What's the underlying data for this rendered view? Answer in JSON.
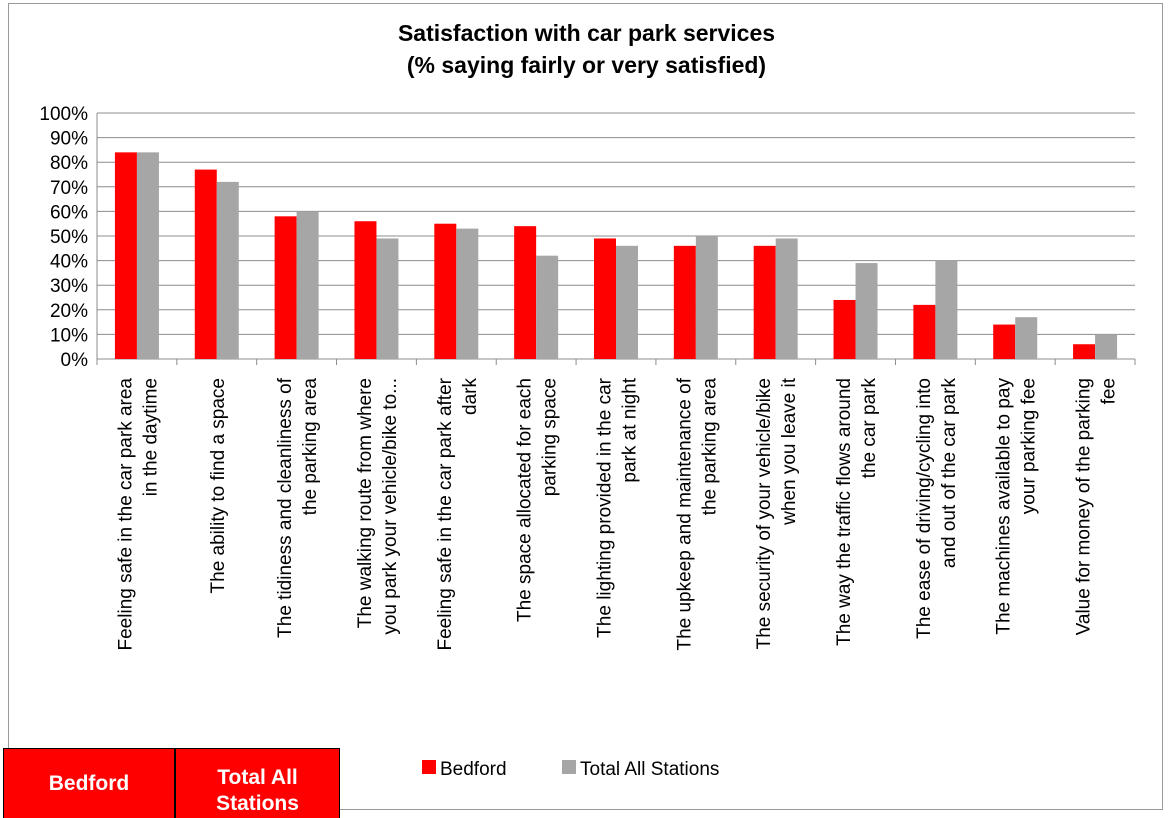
{
  "chart_data": {
    "type": "bar",
    "title": [
      "Satisfaction with car park services",
      "(% saying fairly or very satisfied)"
    ],
    "xlabel": "",
    "ylabel": "",
    "ylim": [
      0,
      100
    ],
    "yticks": [
      "0%",
      "10%",
      "20%",
      "30%",
      "40%",
      "50%",
      "60%",
      "70%",
      "80%",
      "90%",
      "100%"
    ],
    "grid": true,
    "legend": "bottom",
    "categories": [
      [
        "Feeling safe in the car park area",
        "in the daytime"
      ],
      [
        "The ability to find a space"
      ],
      [
        "The tidiness and cleanliness of",
        "the parking area"
      ],
      [
        "The walking route from where",
        "you park your vehicle/bike to..."
      ],
      [
        "Feeling safe in the car park after",
        "dark"
      ],
      [
        "The space allocated for each",
        "parking space"
      ],
      [
        "The lighting provided in the car",
        "park at night"
      ],
      [
        "The upkeep and maintenance of",
        "the parking area"
      ],
      [
        "The security of your vehicle/bike",
        "when you leave it"
      ],
      [
        "The way the traffic flows around",
        "the car park"
      ],
      [
        "The ease of driving/cycling into",
        "and out of the car park"
      ],
      [
        "The machines available to pay",
        "your parking fee"
      ],
      [
        "Value for money of the parking",
        "fee"
      ]
    ],
    "series": [
      {
        "name": "Bedford",
        "color": "#ff0000",
        "values": [
          84,
          77,
          58,
          56,
          55,
          54,
          49,
          46,
          46,
          24,
          22,
          14,
          6
        ]
      },
      {
        "name": "Total All Stations",
        "color": "#a6a6a6",
        "values": [
          84,
          72,
          60,
          49,
          53,
          42,
          46,
          50,
          49,
          39,
          40,
          17,
          10
        ]
      }
    ]
  },
  "table": {
    "headers": [
      "Bedford",
      "Total All Stations"
    ],
    "color": "#ff0000"
  }
}
